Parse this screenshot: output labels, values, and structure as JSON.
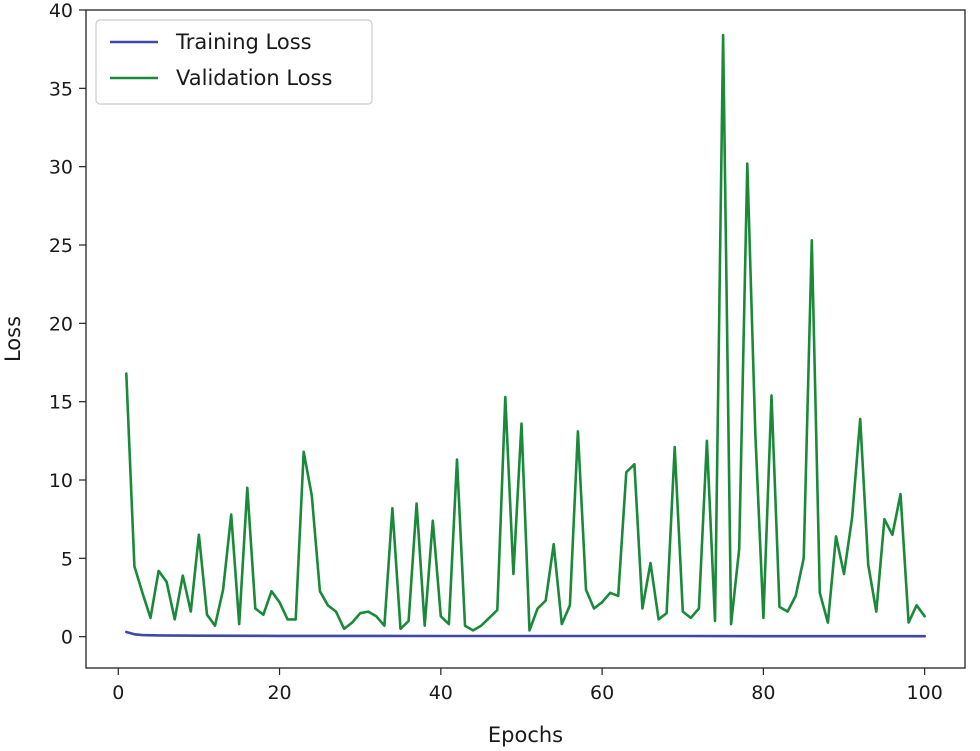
{
  "chart_data": {
    "type": "line",
    "title": "",
    "xlabel": "Epochs",
    "ylabel": "Loss",
    "xlim": [
      -4,
      105
    ],
    "ylim": [
      -2,
      40
    ],
    "xticks": [
      0,
      20,
      40,
      60,
      80,
      100
    ],
    "yticks": [
      0,
      5,
      10,
      15,
      20,
      25,
      30,
      35,
      40
    ],
    "grid": false,
    "legend_position": "top-left",
    "series": [
      {
        "name": "Training Loss",
        "color": "#3f48a8",
        "x": [
          1,
          2,
          3,
          5,
          10,
          20,
          30,
          40,
          50,
          60,
          70,
          80,
          90,
          100
        ],
        "y": [
          0.3,
          0.15,
          0.1,
          0.08,
          0.06,
          0.05,
          0.05,
          0.04,
          0.04,
          0.04,
          0.04,
          0.03,
          0.03,
          0.03
        ]
      },
      {
        "name": "Validation Loss",
        "color": "#1a8a3a",
        "x": [
          1,
          2,
          3,
          4,
          5,
          6,
          7,
          8,
          9,
          10,
          11,
          12,
          13,
          14,
          15,
          16,
          17,
          18,
          19,
          20,
          21,
          22,
          23,
          24,
          25,
          26,
          27,
          28,
          29,
          30,
          31,
          32,
          33,
          34,
          35,
          36,
          37,
          38,
          39,
          40,
          41,
          42,
          43,
          44,
          45,
          46,
          47,
          48,
          49,
          50,
          51,
          52,
          53,
          54,
          55,
          56,
          57,
          58,
          59,
          60,
          61,
          62,
          63,
          64,
          65,
          66,
          67,
          68,
          69,
          70,
          71,
          72,
          73,
          74,
          75,
          76,
          77,
          78,
          79,
          80,
          81,
          82,
          83,
          84,
          85,
          86,
          87,
          88,
          89,
          90,
          91,
          92,
          93,
          94,
          95,
          96,
          97,
          98,
          99,
          100
        ],
        "y": [
          16.8,
          4.5,
          2.8,
          1.2,
          4.2,
          3.5,
          1.1,
          3.9,
          1.6,
          6.5,
          1.4,
          0.7,
          3.0,
          7.8,
          0.8,
          9.5,
          1.8,
          1.4,
          2.9,
          2.2,
          1.1,
          1.1,
          11.8,
          9.0,
          2.9,
          2.0,
          1.6,
          0.5,
          0.9,
          1.5,
          1.6,
          1.3,
          0.7,
          8.2,
          0.5,
          1.0,
          8.5,
          0.7,
          7.4,
          1.3,
          0.8,
          11.3,
          0.7,
          0.4,
          0.7,
          1.2,
          1.7,
          15.3,
          4.0,
          13.6,
          0.4,
          1.8,
          2.3,
          5.9,
          0.8,
          2.0,
          13.1,
          3.0,
          1.8,
          2.2,
          2.8,
          2.6,
          10.5,
          11.0,
          1.8,
          4.7,
          1.1,
          1.5,
          12.1,
          1.6,
          1.2,
          1.8,
          12.5,
          1.0,
          38.4,
          0.8,
          5.6,
          30.2,
          13.0,
          1.2,
          15.4,
          1.9,
          1.6,
          2.6,
          5.0,
          25.3,
          2.8,
          0.9,
          6.4,
          4.0,
          7.6,
          13.9,
          4.6,
          1.6,
          7.5,
          6.5,
          9.1,
          0.9,
          2.0,
          1.3
        ]
      }
    ]
  }
}
